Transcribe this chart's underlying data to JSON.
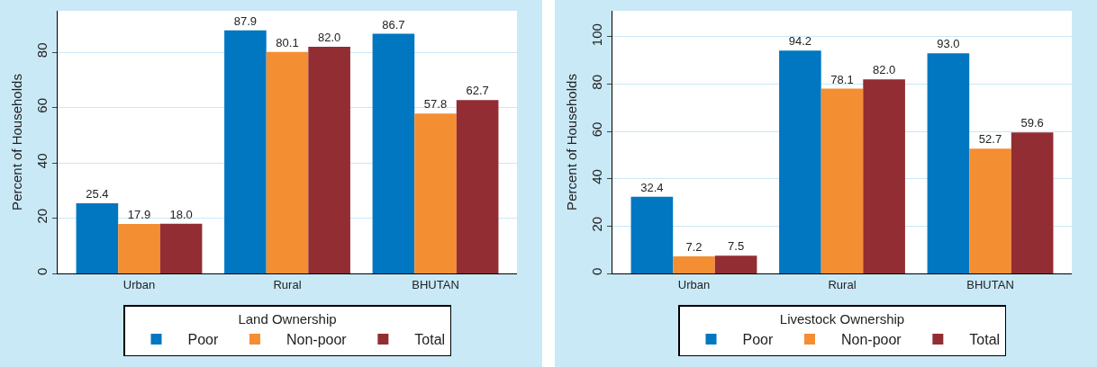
{
  "chart_data": [
    {
      "type": "bar",
      "legend_title": "Land Ownership",
      "ylabel": "Percent of Households",
      "categories": [
        "Urban",
        "Rural",
        "BHUTAN"
      ],
      "series": [
        {
          "name": "Poor",
          "color": "#0077c0",
          "values": [
            25.4,
            87.9,
            86.7
          ],
          "value_labels": [
            "25.4",
            "87.9",
            "86.7"
          ]
        },
        {
          "name": "Non-poor",
          "color": "#f48e33",
          "values": [
            17.9,
            80.1,
            57.8
          ],
          "value_labels": [
            "17.9",
            "80.1",
            "57.8"
          ]
        },
        {
          "name": "Total",
          "color": "#922d33",
          "values": [
            18.0,
            82.0,
            62.7
          ],
          "value_labels": [
            "18.0",
            "82.0",
            "62.7"
          ]
        }
      ],
      "ylim": [
        0,
        95
      ],
      "yticks": [
        0,
        20,
        40,
        60,
        80
      ],
      "grid": "y",
      "legend": "bottom"
    },
    {
      "type": "bar",
      "legend_title": "Livestock Ownership",
      "ylabel": "Percent of Households",
      "categories": [
        "Urban",
        "Rural",
        "BHUTAN"
      ],
      "series": [
        {
          "name": "Poor",
          "color": "#0077c0",
          "values": [
            32.4,
            94.2,
            93.0
          ],
          "value_labels": [
            "32.4",
            "94.2",
            "93.0"
          ]
        },
        {
          "name": "Non-poor",
          "color": "#f48e33",
          "values": [
            7.2,
            78.1,
            52.7
          ],
          "value_labels": [
            "7.2",
            "78.1",
            "52.7"
          ]
        },
        {
          "name": "Total",
          "color": "#922d33",
          "values": [
            7.5,
            82.0,
            59.6
          ],
          "value_labels": [
            "7.5",
            "82.0",
            "59.6"
          ]
        }
      ],
      "ylim": [
        0,
        111
      ],
      "yticks": [
        0,
        20,
        40,
        60,
        80,
        100
      ],
      "grid": "y",
      "legend": "bottom"
    }
  ]
}
